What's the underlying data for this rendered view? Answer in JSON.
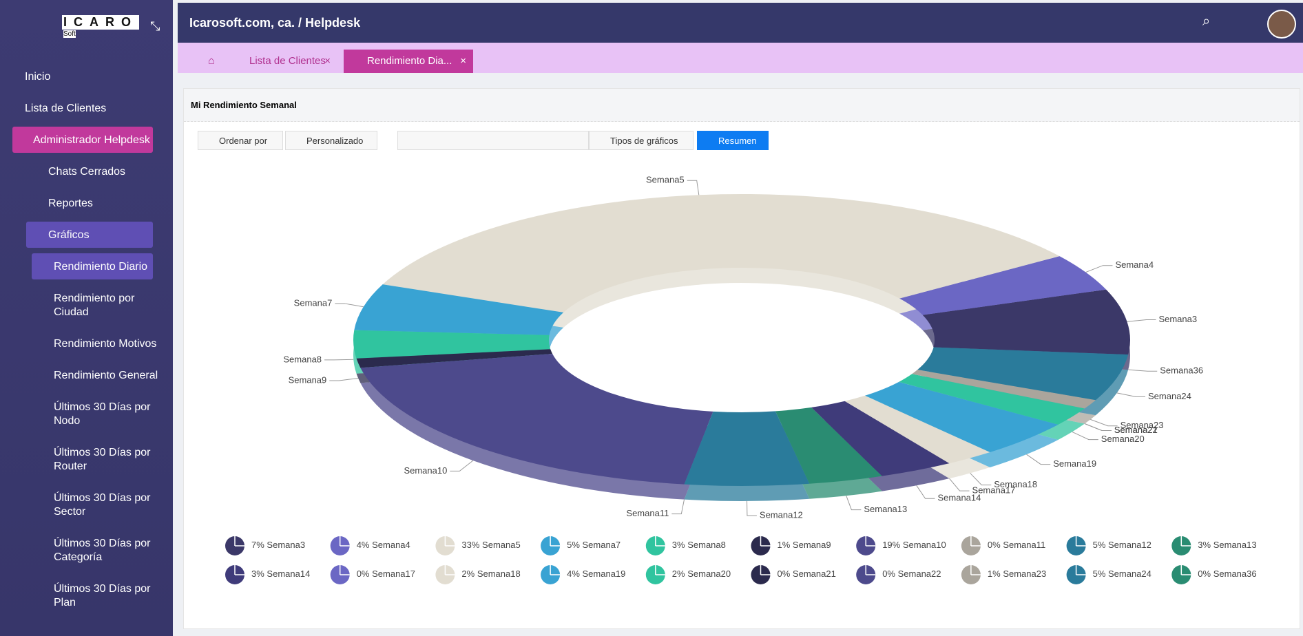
{
  "logo": {
    "name": "ICARO",
    "sub": "Soft"
  },
  "menu": [
    "Inicio",
    "Lista de Clientes",
    "Administrador Helpdesk",
    "Chats Cerrados",
    "Reportes",
    "Gráficos",
    "Rendimiento Diario",
    "Rendimiento por Ciudad",
    "Rendimiento Motivos",
    "Rendimiento General",
    "Últimos 30 Días por Nodo",
    "Últimos 30 Días por Router",
    "Últimos 30 Días por Sector",
    "Últimos 30 Días por Categoría",
    "Últimos 30 Días por Plan"
  ],
  "header": {
    "title": "Icarosoft.com, ca. / Helpdesk"
  },
  "tabs": [
    "Lista de Clientes",
    "Rendimiento Dia..."
  ],
  "panel": {
    "title": "Mi Rendimiento Semanal"
  },
  "toolbar": [
    "Ordenar por",
    "Personalizado",
    "Tipos de gráficos",
    "Resumen"
  ],
  "chart_data": {
    "type": "pie",
    "categories": [
      "Semana3",
      "Semana4",
      "Semana5",
      "Semana7",
      "Semana8",
      "Semana9",
      "Semana10",
      "Semana11",
      "Semana12",
      "Semana13",
      "Semana14",
      "Semana17",
      "Semana18",
      "Semana19",
      "Semana20",
      "Semana21",
      "Semana22",
      "Semana23",
      "Semana24",
      "Semana36"
    ],
    "values": [
      7,
      4,
      33,
      5,
      3,
      1,
      19,
      0,
      5,
      3,
      3,
      0,
      2,
      4,
      2,
      0,
      0,
      1,
      5,
      0
    ],
    "value_labels": [
      "7%",
      "4%",
      "33%",
      "5%",
      "3%",
      "1%",
      "19%",
      "0%",
      "5%",
      "3%",
      "3%",
      "0%",
      "2%",
      "4%",
      "2%",
      "0%",
      "0%",
      "1%",
      "5%",
      "0%"
    ],
    "colors": [
      "#3b3868",
      "#6b67c4",
      "#e2ddd1",
      "#39a3d3",
      "#30c49f",
      "#2b2a4d",
      "#4d4a8c",
      "#aaa59c",
      "#2a7b9b",
      "#2a8c72",
      "#3f3b7a",
      "#6b67c4",
      "#e2ddd1",
      "#39a3d3",
      "#30c49f",
      "#2b2a4d",
      "#4d4a8c",
      "#aaa59c",
      "#2a7b9b",
      "#2a8c72"
    ]
  }
}
